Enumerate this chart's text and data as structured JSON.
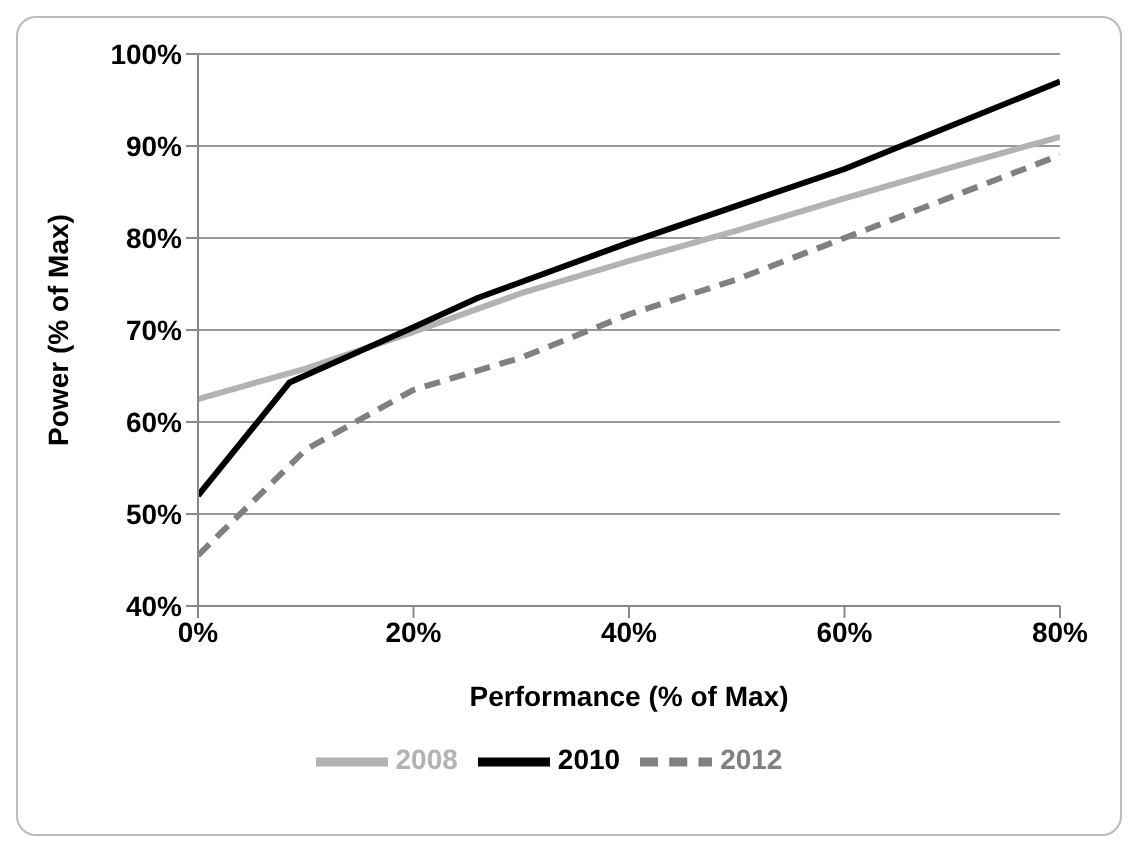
{
  "chart_data": {
    "type": "line",
    "xlabel": "Performance (% of Max)",
    "ylabel": "Power (% of Max)",
    "xlim": [
      0,
      80
    ],
    "xticks": [
      {
        "value": 0,
        "label": "0%"
      },
      {
        "value": 20,
        "label": "20%"
      },
      {
        "value": 40,
        "label": "40%"
      },
      {
        "value": 60,
        "label": "60%"
      },
      {
        "value": 80,
        "label": "80%"
      }
    ],
    "ylim": [
      40,
      100
    ],
    "yticks": [
      {
        "value": 40,
        "label": "40%"
      },
      {
        "value": 50,
        "label": "50%"
      },
      {
        "value": 60,
        "label": "60%"
      },
      {
        "value": 70,
        "label": "70%"
      },
      {
        "value": 80,
        "label": "80%"
      },
      {
        "value": 90,
        "label": "90%"
      },
      {
        "value": 100,
        "label": "100%"
      }
    ],
    "grid": "y",
    "legend": "bottom",
    "marker": "none",
    "series": [
      {
        "name": "2008",
        "color": "#b3b3b3",
        "line_style": "solid",
        "x": [
          0,
          10,
          20,
          30,
          40,
          50,
          60,
          70,
          80
        ],
        "values": [
          62.5,
          65.8,
          69.8,
          74,
          77.5,
          80.8,
          84.3,
          87.7,
          91
        ]
      },
      {
        "name": "2010",
        "color": "#000000",
        "line_style": "solid",
        "x": [
          0,
          8.5,
          20,
          26,
          40,
          60,
          80
        ],
        "values": [
          52,
          64.3,
          70.3,
          73.5,
          79.5,
          87.5,
          97
        ]
      },
      {
        "name": "2012",
        "color": "#808080",
        "line_style": "dashed",
        "x": [
          0,
          10,
          20,
          30,
          40,
          50,
          60,
          70,
          80
        ],
        "values": [
          45.5,
          57,
          63.5,
          67,
          71.7,
          75.5,
          80,
          84.5,
          89
        ]
      }
    ]
  }
}
